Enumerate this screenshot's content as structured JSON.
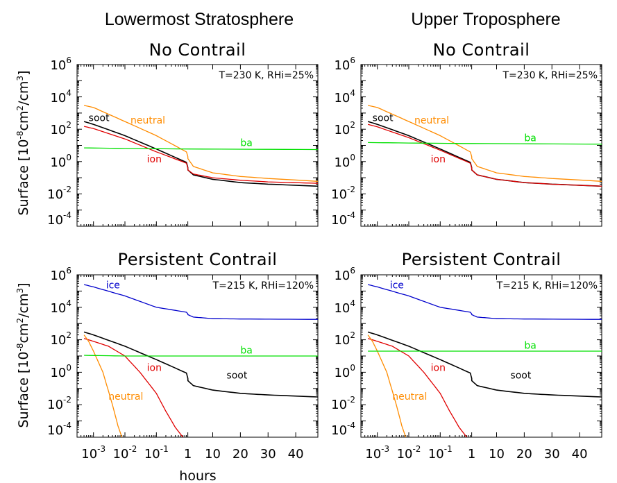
{
  "headers": {
    "left": "Lowermost Stratosphere",
    "right": "Upper Troposphere"
  },
  "y_axis_label_prefix": "Surface  [10",
  "y_axis_label_sup1": "-8",
  "y_axis_label_mid": "cm",
  "y_axis_label_sup2": "2",
  "y_axis_label_mid2": "/cm",
  "y_axis_label_sup3": "3",
  "y_axis_label_suffix": "]",
  "x_axis_label": "hours",
  "y_tick_labels": [
    {
      "base": "10",
      "exp": "6"
    },
    {
      "base": "10",
      "exp": "4"
    },
    {
      "base": "10",
      "exp": "2"
    },
    {
      "base": "10",
      "exp": "0"
    },
    {
      "base": "10",
      "exp": "-2"
    },
    {
      "base": "10",
      "exp": "-4"
    }
  ],
  "x_tick_labels": [
    {
      "base": "10",
      "exp": "-3"
    },
    {
      "base": "10",
      "exp": "-2"
    },
    {
      "base": "10",
      "exp": "-1"
    },
    {
      "base": "1",
      "exp": ""
    },
    {
      "base": "10",
      "exp": ""
    },
    {
      "base": "20",
      "exp": ""
    },
    {
      "base": "30",
      "exp": ""
    },
    {
      "base": "40",
      "exp": ""
    }
  ],
  "colors": {
    "soot": "#000000",
    "neutral": "#ff8c00",
    "ion": "#e00000",
    "ba": "#00e000",
    "ice": "#0000cc"
  },
  "chart_data": [
    {
      "type": "line",
      "title": "No Contrail",
      "column_header": "Lowermost Stratosphere",
      "annotation": "T=230 K, RHi=25%",
      "xlabel": "",
      "ylabel": "Surface [10^-8 cm^2/cm^3]",
      "x_scale": "log below 1 h, linear 1–48 h",
      "ylim": [
        0.0001,
        1000000
      ],
      "y_scale": "log",
      "series": [
        {
          "name": "neutral",
          "color": "#ff8c00",
          "x": [
            0.0005,
            0.001,
            0.01,
            0.1,
            0.9,
            1.05,
            3,
            10,
            20,
            30,
            48
          ],
          "y": [
            3000,
            2200,
            300,
            40,
            4,
            1.5,
            0.5,
            0.2,
            0.12,
            0.09,
            0.06
          ]
        },
        {
          "name": "soot",
          "color": "#000000",
          "x": [
            0.0005,
            0.001,
            0.01,
            0.1,
            0.9,
            1.05,
            3,
            10,
            20,
            30,
            48
          ],
          "y": [
            300,
            200,
            40,
            6,
            0.9,
            0.3,
            0.15,
            0.08,
            0.05,
            0.04,
            0.03
          ]
        },
        {
          "name": "ion",
          "color": "#e00000",
          "x": [
            0.0005,
            0.001,
            0.01,
            0.1,
            0.9,
            1.05,
            3,
            10,
            20,
            30,
            48
          ],
          "y": [
            150,
            110,
            25,
            4,
            0.8,
            0.3,
            0.17,
            0.1,
            0.07,
            0.055,
            0.045
          ]
        },
        {
          "name": "ba",
          "color": "#00e000",
          "x": [
            0.0005,
            0.01,
            1,
            48
          ],
          "y": [
            7,
            6.5,
            6,
            5.5
          ]
        }
      ],
      "labels": [
        {
          "text": "soot",
          "series": "soot",
          "x": 0.0007,
          "y": 320
        },
        {
          "text": "neutral",
          "series": "neutral",
          "x": 0.015,
          "y": 220
        },
        {
          "text": "ba",
          "series": "ba",
          "x": 20,
          "y": 9
        },
        {
          "text": "ion",
          "series": "ion",
          "x": 0.05,
          "y": 0.9
        }
      ]
    },
    {
      "type": "line",
      "title": "No Contrail",
      "column_header": "Upper Troposphere",
      "annotation": "T=230 K, RHi=25%",
      "xlabel": "",
      "ylabel": "",
      "x_scale": "log below 1 h, linear 1–48 h",
      "ylim": [
        0.0001,
        1000000
      ],
      "y_scale": "log",
      "series": [
        {
          "name": "neutral",
          "color": "#ff8c00",
          "x": [
            0.0005,
            0.001,
            0.01,
            0.1,
            0.9,
            1.05,
            3,
            10,
            20,
            30,
            48
          ],
          "y": [
            3000,
            2200,
            300,
            40,
            4,
            1.5,
            0.5,
            0.2,
            0.12,
            0.09,
            0.06
          ]
        },
        {
          "name": "soot",
          "color": "#000000",
          "x": [
            0.0005,
            0.001,
            0.01,
            0.1,
            0.9,
            1.05,
            3,
            10,
            20,
            30,
            48
          ],
          "y": [
            300,
            200,
            40,
            6,
            0.9,
            0.3,
            0.15,
            0.08,
            0.05,
            0.04,
            0.03
          ]
        },
        {
          "name": "ion",
          "color": "#e00000",
          "x": [
            0.0005,
            0.001,
            0.01,
            0.1,
            0.9,
            1.05,
            3,
            10,
            20,
            30,
            48
          ],
          "y": [
            200,
            140,
            30,
            5,
            0.8,
            0.3,
            0.15,
            0.08,
            0.05,
            0.04,
            0.03
          ]
        },
        {
          "name": "ba",
          "color": "#00e000",
          "x": [
            0.0005,
            0.01,
            1,
            48
          ],
          "y": [
            15,
            14,
            13,
            12
          ]
        }
      ],
      "labels": [
        {
          "text": "soot",
          "series": "soot",
          "x": 0.0007,
          "y": 320
        },
        {
          "text": "neutral",
          "series": "neutral",
          "x": 0.015,
          "y": 220
        },
        {
          "text": "ba",
          "series": "ba",
          "x": 20,
          "y": 18
        },
        {
          "text": "ion",
          "series": "ion",
          "x": 0.05,
          "y": 0.9
        }
      ]
    },
    {
      "type": "line",
      "title": "Persistent Contrail",
      "column_header": "Lowermost Stratosphere",
      "annotation": "T=215 K, RHi=120%",
      "xlabel": "hours",
      "ylabel": "Surface [10^-8 cm^2/cm^3]",
      "x_scale": "log below 1 h, linear 1–48 h",
      "ylim": [
        0.0001,
        1000000
      ],
      "y_scale": "log",
      "series": [
        {
          "name": "ice",
          "color": "#0000cc",
          "x": [
            0.0005,
            0.001,
            0.01,
            0.1,
            0.9,
            1.05,
            3,
            10,
            20,
            48
          ],
          "y": [
            250000,
            180000,
            50000,
            10000,
            5000,
            3500,
            2500,
            2000,
            1900,
            1800
          ]
        },
        {
          "name": "soot",
          "color": "#000000",
          "x": [
            0.0005,
            0.001,
            0.01,
            0.1,
            0.9,
            1.05,
            3,
            10,
            20,
            30,
            48
          ],
          "y": [
            300,
            200,
            40,
            6,
            0.9,
            0.3,
            0.15,
            0.08,
            0.05,
            0.04,
            0.03
          ]
        },
        {
          "name": "ion",
          "color": "#e00000",
          "x": [
            0.0005,
            0.001,
            0.003,
            0.01,
            0.03,
            0.1,
            0.2,
            0.4,
            0.7
          ],
          "y": [
            120,
            80,
            40,
            10,
            1,
            0.05,
            0.004,
            0.0004,
            0.0001
          ]
        },
        {
          "name": "neutral",
          "color": "#ff8c00",
          "x": [
            0.0005,
            0.0007,
            0.001,
            0.002,
            0.004,
            0.006,
            0.008
          ],
          "y": [
            200,
            80,
            20,
            1,
            0.01,
            0.0005,
            0.0001
          ]
        },
        {
          "name": "ba",
          "color": "#00e000",
          "x": [
            0.0005,
            0.01,
            1,
            48
          ],
          "y": [
            11,
            10,
            10,
            10
          ]
        }
      ],
      "labels": [
        {
          "text": "ice",
          "series": "ice",
          "x": 0.0025,
          "y": 150000
        },
        {
          "text": "ba",
          "series": "ba",
          "x": 20,
          "y": 14
        },
        {
          "text": "ion",
          "series": "ion",
          "x": 0.05,
          "y": 1.2
        },
        {
          "text": "soot",
          "series": "soot",
          "x": 15,
          "y": 0.4
        },
        {
          "text": "neutral",
          "series": "neutral",
          "x": 0.003,
          "y": 0.02
        }
      ]
    },
    {
      "type": "line",
      "title": "Persistent Contrail",
      "column_header": "Upper Troposphere",
      "annotation": "T=215 K, RHi=120%",
      "xlabel": "",
      "ylabel": "",
      "x_scale": "log below 1 h, linear 1–48 h",
      "ylim": [
        0.0001,
        1000000
      ],
      "y_scale": "log",
      "series": [
        {
          "name": "ice",
          "color": "#0000cc",
          "x": [
            0.0005,
            0.001,
            0.01,
            0.1,
            0.9,
            1.05,
            3,
            10,
            20,
            48
          ],
          "y": [
            250000,
            180000,
            50000,
            10000,
            5000,
            3500,
            2500,
            2000,
            1900,
            1800
          ]
        },
        {
          "name": "soot",
          "color": "#000000",
          "x": [
            0.0005,
            0.001,
            0.01,
            0.1,
            0.9,
            1.05,
            3,
            10,
            20,
            30,
            48
          ],
          "y": [
            300,
            200,
            40,
            6,
            0.9,
            0.3,
            0.15,
            0.08,
            0.05,
            0.04,
            0.03
          ]
        },
        {
          "name": "ion",
          "color": "#e00000",
          "x": [
            0.0005,
            0.001,
            0.003,
            0.01,
            0.03,
            0.1,
            0.2,
            0.4,
            0.7
          ],
          "y": [
            120,
            80,
            40,
            10,
            1,
            0.05,
            0.004,
            0.0004,
            0.0001
          ]
        },
        {
          "name": "neutral",
          "color": "#ff8c00",
          "x": [
            0.0005,
            0.0007,
            0.001,
            0.002,
            0.004,
            0.006,
            0.008
          ],
          "y": [
            200,
            80,
            20,
            1,
            0.01,
            0.0005,
            0.0001
          ]
        },
        {
          "name": "ba",
          "color": "#00e000",
          "x": [
            0.0005,
            0.01,
            1,
            48
          ],
          "y": [
            20,
            20,
            20,
            20
          ]
        }
      ],
      "labels": [
        {
          "text": "ice",
          "series": "ice",
          "x": 0.0025,
          "y": 150000
        },
        {
          "text": "ba",
          "series": "ba",
          "x": 20,
          "y": 28
        },
        {
          "text": "ion",
          "series": "ion",
          "x": 0.05,
          "y": 1.2
        },
        {
          "text": "soot",
          "series": "soot",
          "x": 15,
          "y": 0.4
        },
        {
          "text": "neutral",
          "series": "neutral",
          "x": 0.003,
          "y": 0.02
        }
      ]
    }
  ]
}
